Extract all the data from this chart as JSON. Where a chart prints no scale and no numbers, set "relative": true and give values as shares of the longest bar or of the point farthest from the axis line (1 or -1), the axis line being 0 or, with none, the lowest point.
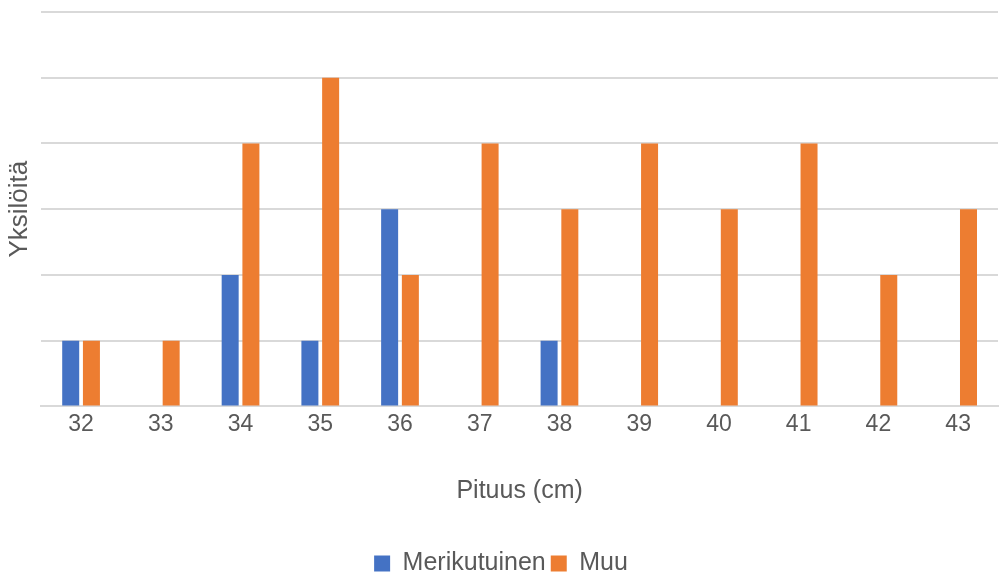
{
  "chart_data": {
    "type": "bar",
    "xlabel": "Pituus (cm)",
    "ylabel": "Yksilöitä",
    "relative": true,
    "grid": "y",
    "legend": "bottom",
    "categories": [
      "32",
      "33",
      "34",
      "35",
      "36",
      "37",
      "38",
      "39",
      "40",
      "41",
      "42",
      "43"
    ],
    "series": [
      {
        "name": "Merikutuinen",
        "color": "#4472c4",
        "values": [
          0.2,
          0,
          0.4,
          0.2,
          0.6,
          0,
          0.2,
          0,
          0,
          0,
          0,
          0
        ]
      },
      {
        "name": "Muu",
        "color": "#ed7d31",
        "values": [
          0.2,
          0.2,
          0.8,
          1,
          0.4,
          0.8,
          0.6,
          0.8,
          0.6,
          0.8,
          0.4,
          0.6
        ]
      }
    ]
  }
}
